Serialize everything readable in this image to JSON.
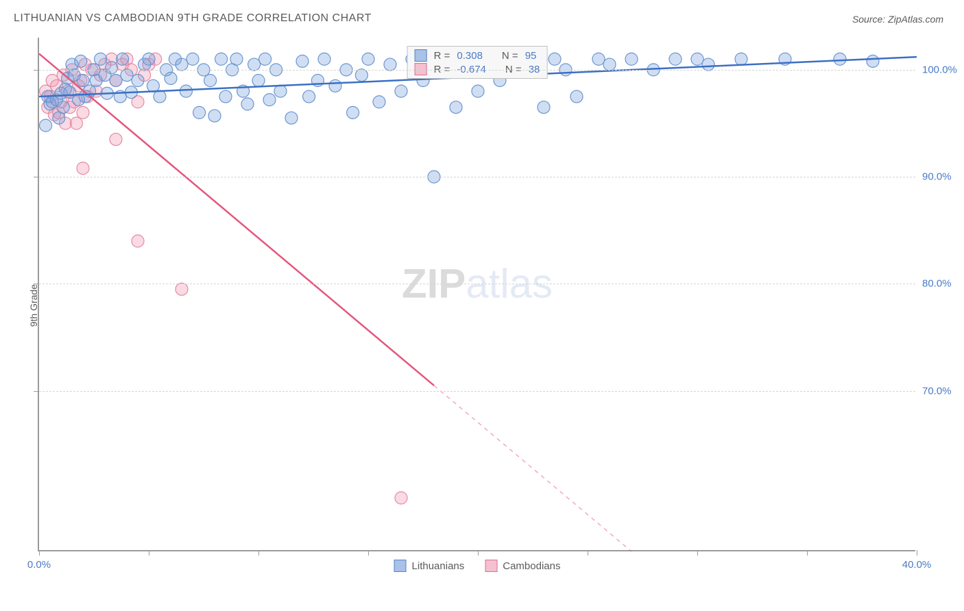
{
  "title": "LITHUANIAN VS CAMBODIAN 9TH GRADE CORRELATION CHART",
  "source": "Source: ZipAtlas.com",
  "ylabel": "9th Grade",
  "watermark_strong": "ZIP",
  "watermark_light": "atlas",
  "chart": {
    "type": "scatter",
    "xlim": [
      0,
      40
    ],
    "ylim": [
      55,
      103
    ],
    "xtick_positions": [
      0,
      5,
      10,
      15,
      20,
      25,
      30,
      35,
      40
    ],
    "xtick_labels": {
      "0": "0.0%",
      "40": "40.0%"
    },
    "ytick_positions": [
      70,
      80,
      90,
      100
    ],
    "ytick_labels": {
      "70": "70.0%",
      "80": "80.0%",
      "90": "90.0%",
      "100": "100.0%"
    },
    "grid_color": "#d5d5d5",
    "background_color": "#ffffff",
    "axis_color": "#9a9a9a",
    "label_color_blue": "#4a7ac7",
    "tick_label_color": "#4a7ac7"
  },
  "series": {
    "lithuanians": {
      "label": "Lithuanians",
      "color_fill": "rgba(120,160,220,0.35)",
      "color_stroke": "#6a95d0",
      "trend_color": "#3b6fc4",
      "swatch_fill": "#a8c2e8",
      "swatch_border": "#5a82c0",
      "R": "0.308",
      "N": "95",
      "trend": {
        "x1": 0,
        "y1": 97.5,
        "x2": 40,
        "y2": 101.2
      },
      "trend_dash_after_x": null,
      "points": [
        [
          0.4,
          97.5
        ],
        [
          0.5,
          96.8
        ],
        [
          0.6,
          97
        ],
        [
          0.8,
          97.2
        ],
        [
          0.9,
          95.5
        ],
        [
          1.0,
          97.8
        ],
        [
          1.1,
          96.5
        ],
        [
          1.2,
          98.2
        ],
        [
          1.3,
          99.2
        ],
        [
          1.4,
          97.9
        ],
        [
          1.5,
          100.5
        ],
        [
          1.6,
          99.5
        ],
        [
          1.8,
          97.2
        ],
        [
          1.9,
          100.8
        ],
        [
          2.0,
          99.0
        ],
        [
          2.1,
          97.5
        ],
        [
          2.3,
          98.0
        ],
        [
          2.5,
          100.0
        ],
        [
          2.6,
          99.0
        ],
        [
          2.8,
          101.0
        ],
        [
          3.0,
          99.5
        ],
        [
          3.1,
          97.8
        ],
        [
          3.3,
          100.2
        ],
        [
          3.5,
          99.0
        ],
        [
          3.7,
          97.5
        ],
        [
          3.8,
          101.0
        ],
        [
          4.0,
          99.5
        ],
        [
          4.2,
          97.9
        ],
        [
          4.5,
          99.0
        ],
        [
          4.8,
          100.5
        ],
        [
          5.0,
          101.0
        ],
        [
          5.2,
          98.5
        ],
        [
          5.5,
          97.5
        ],
        [
          5.8,
          100.0
        ],
        [
          6.0,
          99.2
        ],
        [
          6.2,
          101.0
        ],
        [
          6.5,
          100.5
        ],
        [
          6.7,
          98.0
        ],
        [
          7.0,
          101.0
        ],
        [
          7.3,
          96.0
        ],
        [
          7.5,
          100.0
        ],
        [
          7.8,
          99.0
        ],
        [
          8.0,
          95.7
        ],
        [
          8.3,
          101.0
        ],
        [
          8.5,
          97.5
        ],
        [
          8.8,
          100.0
        ],
        [
          9.0,
          101.0
        ],
        [
          9.3,
          98.0
        ],
        [
          9.5,
          96.8
        ],
        [
          9.8,
          100.5
        ],
        [
          10.0,
          99.0
        ],
        [
          10.3,
          101.0
        ],
        [
          10.5,
          97.2
        ],
        [
          10.8,
          100.0
        ],
        [
          11.0,
          98.0
        ],
        [
          11.5,
          95.5
        ],
        [
          12.0,
          100.8
        ],
        [
          12.3,
          97.5
        ],
        [
          12.7,
          99.0
        ],
        [
          13.0,
          101.0
        ],
        [
          13.5,
          98.5
        ],
        [
          14.0,
          100.0
        ],
        [
          14.3,
          96.0
        ],
        [
          14.7,
          99.5
        ],
        [
          15.0,
          101.0
        ],
        [
          15.5,
          97.0
        ],
        [
          16.0,
          100.5
        ],
        [
          16.5,
          98.0
        ],
        [
          17.0,
          101.0
        ],
        [
          17.5,
          99.0
        ],
        [
          18.0,
          90.0
        ],
        [
          18.5,
          100.0
        ],
        [
          19.0,
          96.5
        ],
        [
          19.5,
          101.0
        ],
        [
          20.0,
          98.0
        ],
        [
          20.5,
          100.5
        ],
        [
          21.0,
          99.0
        ],
        [
          21.5,
          101.0
        ],
        [
          22.5,
          100.0
        ],
        [
          23.0,
          96.5
        ],
        [
          23.5,
          101.0
        ],
        [
          24.0,
          100.0
        ],
        [
          24.5,
          97.5
        ],
        [
          25.5,
          101.0
        ],
        [
          26.0,
          100.5
        ],
        [
          27.0,
          101.0
        ],
        [
          28.0,
          100.0
        ],
        [
          29.0,
          101.0
        ],
        [
          30.0,
          101.0
        ],
        [
          30.5,
          100.5
        ],
        [
          32.0,
          101.0
        ],
        [
          34.0,
          101.0
        ],
        [
          36.5,
          101.0
        ],
        [
          38.0,
          100.8
        ],
        [
          0.3,
          94.8
        ]
      ]
    },
    "cambodians": {
      "label": "Cambodians",
      "color_fill": "rgba(240,150,175,0.35)",
      "color_stroke": "#e589a5",
      "trend_color": "#e4567c",
      "swatch_fill": "#f5c0cf",
      "swatch_border": "#d87090",
      "R": "-0.674",
      "N": "38",
      "trend": {
        "x1": 0,
        "y1": 101.5,
        "x2": 27,
        "y2": 55
      },
      "trend_dash_after_x": 18.0,
      "points": [
        [
          0.3,
          98.0
        ],
        [
          0.4,
          96.5
        ],
        [
          0.5,
          97.5
        ],
        [
          0.6,
          99.0
        ],
        [
          0.7,
          95.8
        ],
        [
          0.8,
          98.5
        ],
        [
          0.9,
          96.0
        ],
        [
          1.0,
          97.0
        ],
        [
          1.1,
          99.5
        ],
        [
          1.2,
          95.0
        ],
        [
          1.3,
          98.0
        ],
        [
          1.4,
          96.5
        ],
        [
          1.5,
          100.0
        ],
        [
          1.6,
          97.0
        ],
        [
          1.7,
          95.0
        ],
        [
          1.8,
          98.5
        ],
        [
          1.9,
          99.0
        ],
        [
          2.0,
          96.0
        ],
        [
          2.1,
          100.5
        ],
        [
          2.2,
          97.5
        ],
        [
          2.4,
          100.0
        ],
        [
          2.6,
          98.0
        ],
        [
          2.8,
          99.5
        ],
        [
          3.0,
          100.5
        ],
        [
          3.3,
          101.0
        ],
        [
          3.5,
          99.0
        ],
        [
          3.8,
          100.5
        ],
        [
          4.0,
          101.0
        ],
        [
          4.2,
          100.0
        ],
        [
          4.5,
          97.0
        ],
        [
          4.8,
          99.5
        ],
        [
          5.0,
          100.5
        ],
        [
          5.3,
          101.0
        ],
        [
          2.0,
          90.8
        ],
        [
          3.5,
          93.5
        ],
        [
          4.5,
          84.0
        ],
        [
          6.5,
          79.5
        ],
        [
          16.5,
          60.0
        ]
      ]
    }
  },
  "stats_box": {
    "r_label": "R =",
    "n_label": "N ="
  },
  "legend": {
    "position": "bottom-center"
  },
  "colors": {
    "watermark_strong": "rgba(90,90,90,0.22)",
    "watermark_light": "rgba(130,160,210,0.22)",
    "text": "#5a5a5a",
    "value_blue": "#4a7ac7"
  },
  "marker_radius": 9,
  "line_width_trend": 2.5
}
